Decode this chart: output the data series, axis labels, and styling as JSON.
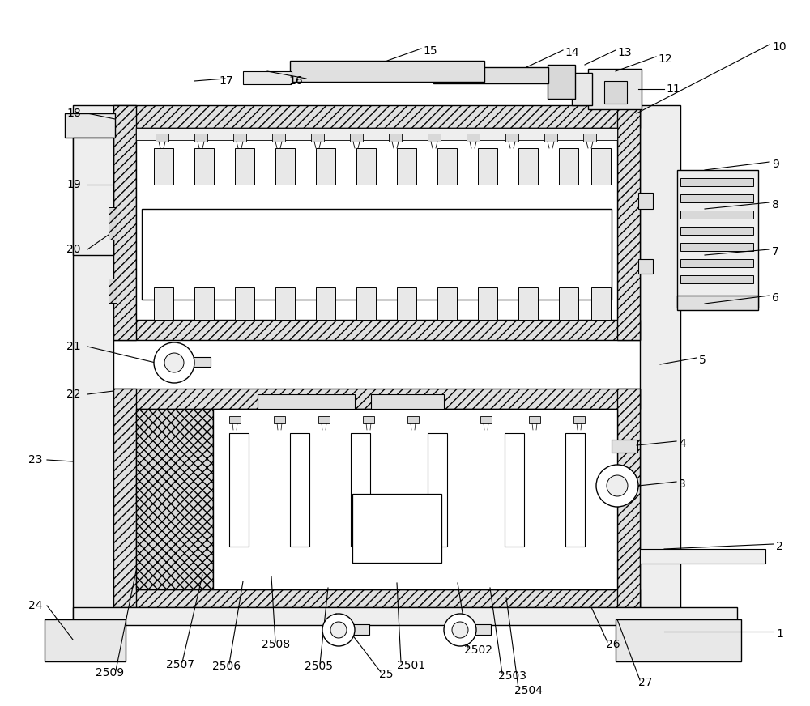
{
  "bg_color": "#ffffff",
  "lc": "#000000",
  "fc_hatch": "#e8e8e8",
  "fc_light": "#f0f0f0",
  "fc_white": "#ffffff",
  "fc_gray": "#d8d8d8"
}
